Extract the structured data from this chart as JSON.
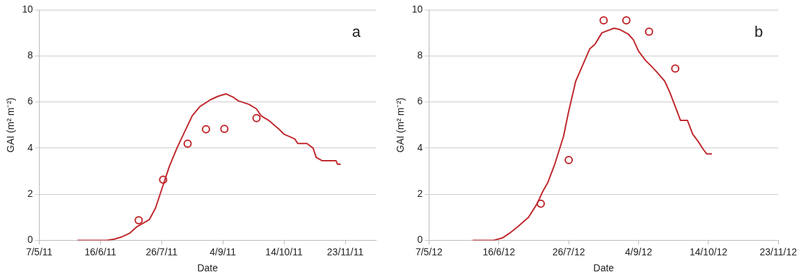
{
  "chart_data": [
    {
      "type": "line",
      "xlabel": "Date",
      "ylabel": "GAI (m² m⁻²)",
      "annotations": [
        "a"
      ],
      "grid": "y",
      "legend": false,
      "xlim": [
        "2011-05-07",
        "2011-12-13"
      ],
      "xticks": [
        {
          "value": "2011-05-07",
          "label": "7/5/11"
        },
        {
          "value": "2011-06-16",
          "label": "16/6/11"
        },
        {
          "value": "2011-07-26",
          "label": "26/7/11"
        },
        {
          "value": "2011-09-04",
          "label": "4/9/11"
        },
        {
          "value": "2011-10-14",
          "label": "14/10/11"
        },
        {
          "value": "2011-11-23",
          "label": "23/11/11"
        }
      ],
      "ylim": [
        0,
        10
      ],
      "yticks": [
        0,
        2,
        4,
        6,
        8,
        10
      ],
      "series": [
        {
          "type": "line",
          "color": "#c0282d",
          "marker": "none",
          "x": [
            "2011-06-01",
            "2011-06-20",
            "2011-06-25",
            "2011-06-30",
            "2011-07-05",
            "2011-07-10",
            "2011-07-18",
            "2011-07-22",
            "2011-07-26",
            "2011-07-31",
            "2011-08-05",
            "2011-08-10",
            "2011-08-15",
            "2011-08-20",
            "2011-08-27",
            "2011-09-01",
            "2011-09-06",
            "2011-09-11",
            "2011-09-14",
            "2011-09-21",
            "2011-09-26",
            "2011-09-29",
            "2011-10-04",
            "2011-10-11",
            "2011-10-14",
            "2011-10-21",
            "2011-10-23",
            "2011-10-29",
            "2011-11-02",
            "2011-11-04",
            "2011-11-08",
            "2011-11-17",
            "2011-11-18",
            "2011-11-20"
          ],
          "values": [
            0,
            0,
            0.05,
            0.15,
            0.3,
            0.6,
            0.9,
            1.4,
            2.2,
            3.2,
            4.0,
            4.7,
            5.4,
            5.8,
            6.1,
            6.25,
            6.35,
            6.2,
            6.05,
            5.9,
            5.7,
            5.4,
            5.2,
            4.8,
            4.6,
            4.4,
            4.2,
            4.2,
            4.0,
            3.6,
            3.45,
            3.45,
            3.3,
            3.3
          ]
        },
        {
          "type": "scatter",
          "color": "#c0282d",
          "marker": "circle",
          "x": [
            "2011-07-11",
            "2011-07-27",
            "2011-08-12",
            "2011-08-24",
            "2011-09-05",
            "2011-09-26"
          ],
          "values": [
            0.87,
            2.63,
            4.19,
            4.82,
            4.83,
            5.3
          ]
        }
      ]
    },
    {
      "type": "line",
      "xlabel": "Date",
      "ylabel": "GAI (m² m⁻²)",
      "annotations": [
        "b"
      ],
      "grid": "y",
      "legend": false,
      "xlim": [
        "2012-05-07",
        "2012-11-23"
      ],
      "xticks": [
        {
          "value": "2012-05-07",
          "label": "7/5/12"
        },
        {
          "value": "2012-06-16",
          "label": "16/6/12"
        },
        {
          "value": "2012-07-26",
          "label": "26/7/12"
        },
        {
          "value": "2012-09-04",
          "label": "4/9/12"
        },
        {
          "value": "2012-10-14",
          "label": "14/10/12"
        },
        {
          "value": "2012-11-23",
          "label": "23/11/12"
        }
      ],
      "ylim": [
        0,
        10
      ],
      "yticks": [
        0,
        2,
        4,
        6,
        8,
        10
      ],
      "series": [
        {
          "type": "line",
          "color": "#c0282d",
          "marker": "none",
          "x": [
            "2012-06-01",
            "2012-06-13",
            "2012-06-18",
            "2012-06-22",
            "2012-06-27",
            "2012-07-03",
            "2012-07-08",
            "2012-07-11",
            "2012-07-14",
            "2012-07-18",
            "2012-07-23",
            "2012-07-26",
            "2012-07-30",
            "2012-08-03",
            "2012-08-07",
            "2012-08-10",
            "2012-08-14",
            "2012-08-21",
            "2012-08-24",
            "2012-08-29",
            "2012-09-01",
            "2012-09-04",
            "2012-09-08",
            "2012-09-12",
            "2012-09-15",
            "2012-09-19",
            "2012-09-22",
            "2012-09-25",
            "2012-09-28",
            "2012-10-02",
            "2012-10-05",
            "2012-10-08",
            "2012-10-11",
            "2012-10-13",
            "2012-10-16"
          ],
          "values": [
            0,
            0,
            0.1,
            0.3,
            0.6,
            1.0,
            1.6,
            2.1,
            2.5,
            3.3,
            4.5,
            5.6,
            6.9,
            7.6,
            8.3,
            8.5,
            9.0,
            9.2,
            9.15,
            8.95,
            8.7,
            8.2,
            7.8,
            7.5,
            7.25,
            6.9,
            6.4,
            5.8,
            5.2,
            5.2,
            4.6,
            4.3,
            3.95,
            3.75,
            3.75
          ]
        },
        {
          "type": "scatter",
          "color": "#c0282d",
          "marker": "circle",
          "x": [
            "2012-07-10",
            "2012-07-26",
            "2012-08-15",
            "2012-08-28",
            "2012-09-10",
            "2012-09-25"
          ],
          "values": [
            1.59,
            3.48,
            9.54,
            9.54,
            9.05,
            7.45
          ]
        }
      ]
    }
  ]
}
